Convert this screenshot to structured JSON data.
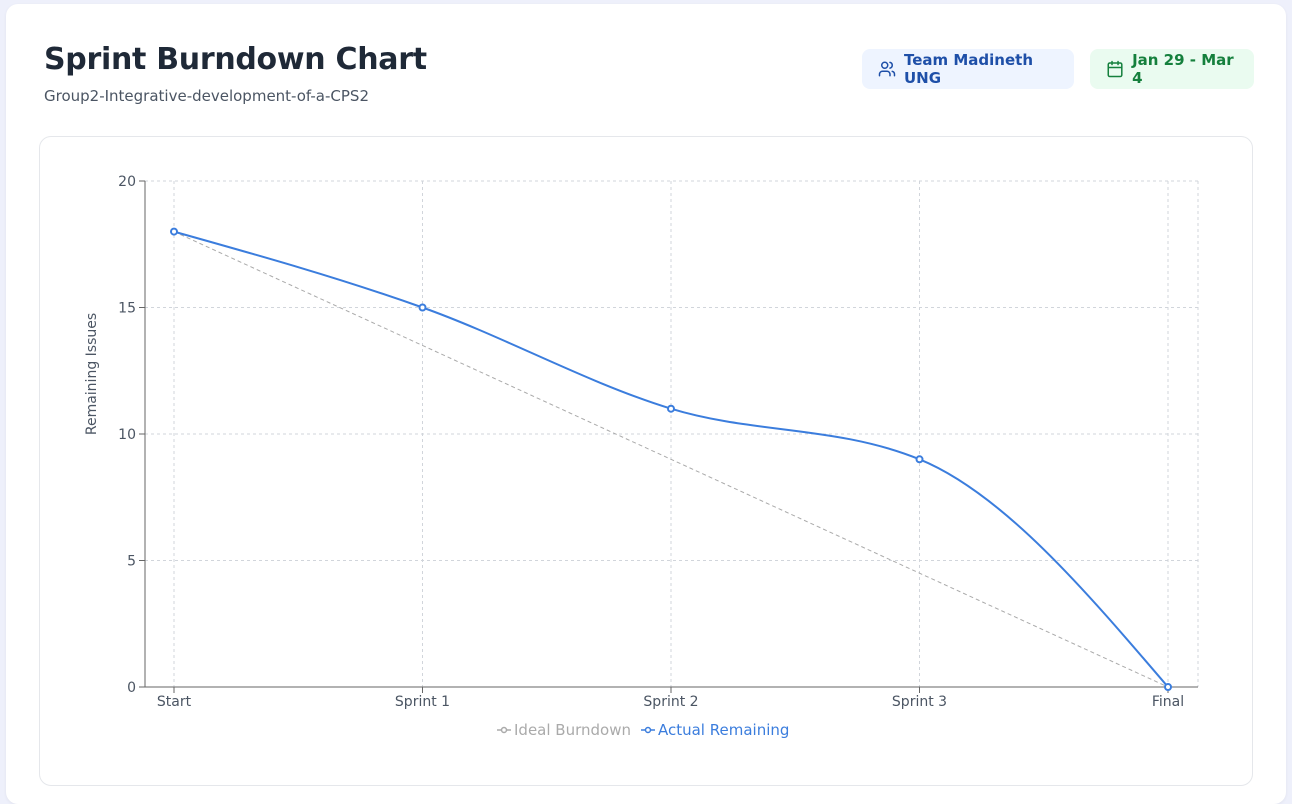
{
  "header": {
    "title": "Sprint Burndown Chart",
    "subtitle": "Group2-Integrative-development-of-a-CPS2",
    "team_label": "Team Madineth UNG",
    "team_icon": "users-icon",
    "date_label": "Jan 29 - Mar 4",
    "date_icon": "calendar-icon"
  },
  "colors": {
    "ideal": "#aaaaaa",
    "actual": "#3b7ddd",
    "team_badge_bg": "#eef4ff",
    "team_badge_text": "#1e4fa8",
    "date_badge_bg": "#eafbf0",
    "date_badge_text": "#15803d"
  },
  "chart_data": {
    "type": "line",
    "categories": [
      "Start",
      "Sprint 1",
      "Sprint 2",
      "Sprint 3",
      "Final"
    ],
    "ylabel": "Remaining Issues",
    "xlabel": "",
    "ylim": [
      0,
      20
    ],
    "yticks": [
      0,
      5,
      10,
      15,
      20
    ],
    "grid": true,
    "legend_position": "bottom",
    "series": [
      {
        "name": "Ideal Burndown",
        "values": [
          18,
          13.5,
          9,
          4.5,
          0
        ],
        "style": "dashed"
      },
      {
        "name": "Actual Remaining",
        "values": [
          18,
          15,
          11,
          9,
          0
        ],
        "style": "solid-smooth"
      }
    ]
  }
}
